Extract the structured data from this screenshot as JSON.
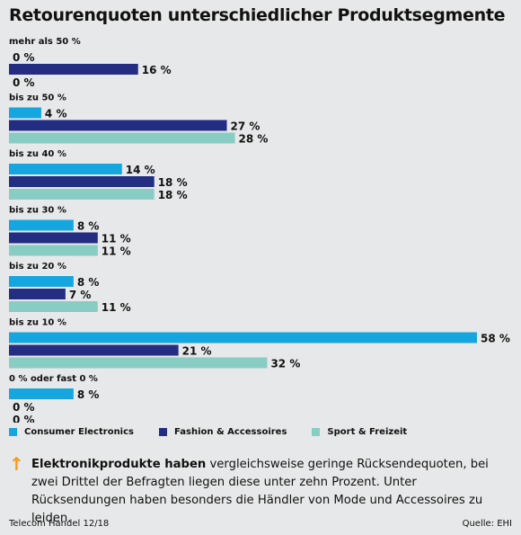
{
  "chart_data": {
    "type": "bar",
    "orientation": "horizontal",
    "title": "Retourenquoten unterschiedlicher Produktsegmente",
    "categories": [
      "mehr als 50 %",
      "bis zu 50 %",
      "bis zu 40 %",
      "bis zu 30 %",
      "bis zu 20 %",
      "bis zu 10 %",
      "0 % oder fast 0 %"
    ],
    "series": [
      {
        "name": "Consumer Electronics",
        "color": "#16a6df",
        "values": [
          0,
          4,
          14,
          8,
          8,
          58,
          8
        ],
        "labels": [
          "0 %",
          "4 %",
          "14 %",
          "8 %",
          "8 %",
          "58 %",
          "8 %"
        ]
      },
      {
        "name": "Fashion & Accessoires",
        "color": "#232d82",
        "values": [
          16,
          27,
          18,
          11,
          7,
          21,
          0
        ],
        "labels": [
          "16 %",
          "27 %",
          "18 %",
          "11 %",
          "7 %",
          "21 %",
          "0 %"
        ]
      },
      {
        "name": "Sport & Freizeit",
        "color": "#88cdc4",
        "values": [
          0,
          28,
          18,
          11,
          11,
          32,
          0
        ],
        "labels": [
          "0 %",
          "28 %",
          "18 %",
          "11 %",
          "11 %",
          "32 %",
          "0 %"
        ]
      }
    ],
    "xlim": [
      0,
      58
    ],
    "legend_position": "bottom-left"
  },
  "note": {
    "bold": "Elektronikprodukte haben",
    "text": " vergleichsweise geringe Rücksendequoten, bei zwei Drittel der Befragten liegen diese unter zehn Prozent. Unter Rücksendungen haben besonders die Händler von Mode und Accessoires zu leiden.",
    "arrow_color": "#f39a1e"
  },
  "footer": {
    "source_left": "Telecom Handel 12/18",
    "source_right": "Quelle: EHI"
  }
}
